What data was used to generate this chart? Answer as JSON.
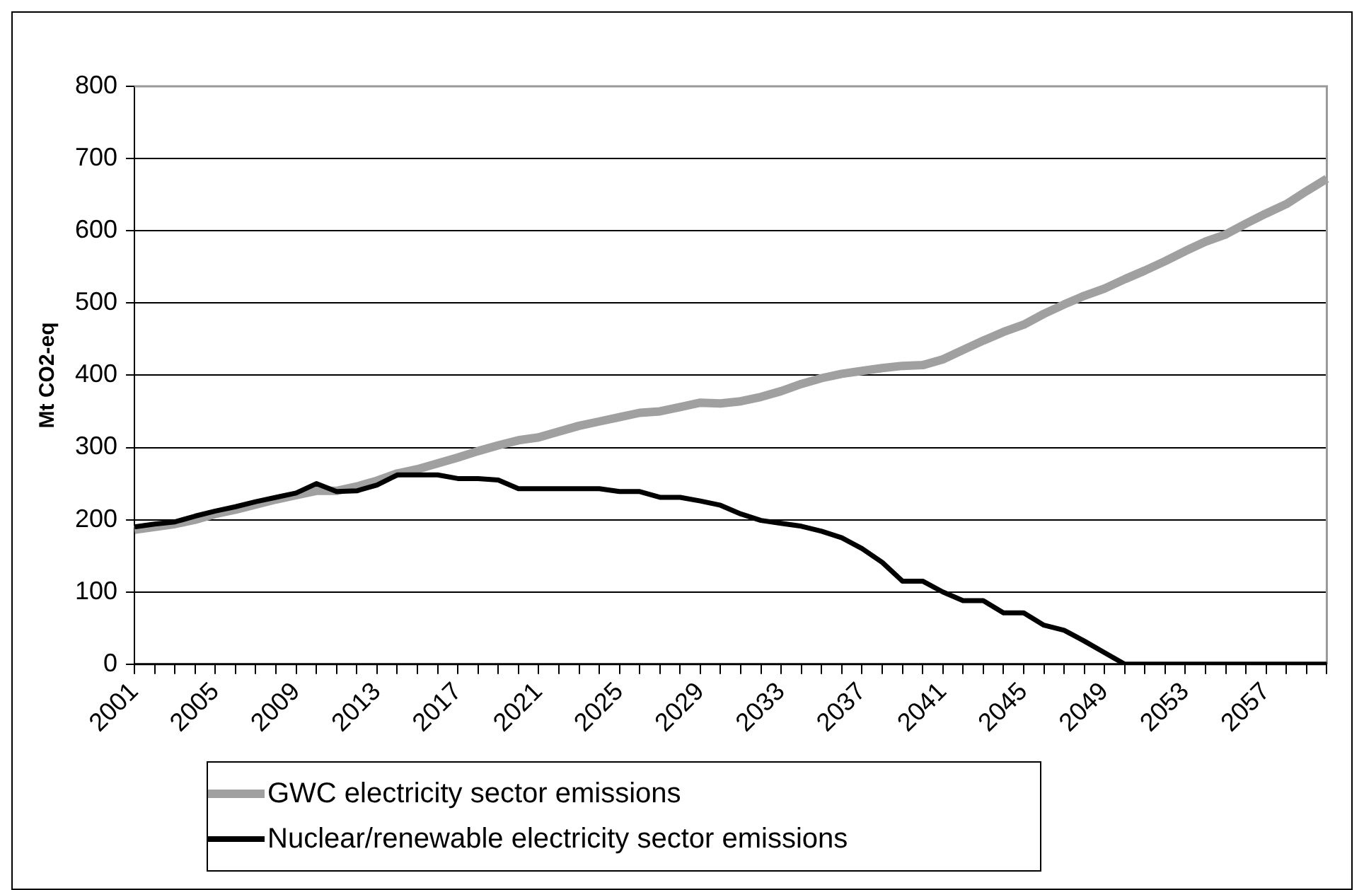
{
  "chart_data": {
    "type": "line",
    "ylabel": "Mt CO2-eq",
    "categories": [
      "2001",
      null,
      null,
      null,
      "2005",
      null,
      null,
      null,
      "2009",
      null,
      null,
      null,
      "2013",
      null,
      null,
      null,
      "2017",
      null,
      null,
      null,
      "2021",
      null,
      null,
      null,
      "2025",
      null,
      null,
      null,
      "2029",
      null,
      null,
      null,
      "2033",
      null,
      null,
      null,
      "2037",
      null,
      null,
      null,
      "2041",
      null,
      null,
      null,
      "2045",
      null,
      null,
      null,
      "2049",
      null,
      null,
      null,
      "2053",
      null,
      null,
      null,
      "2057",
      null,
      null,
      null
    ],
    "series": [
      {
        "name": "GWC electricity sector emissions",
        "color": "#a0a0a0",
        "values": [
          186,
          190,
          194,
          200,
          208,
          214,
          221,
          228,
          234,
          240,
          240,
          246,
          254,
          264,
          270,
          278,
          286,
          295,
          303,
          310,
          314,
          322,
          330,
          336,
          342,
          348,
          350,
          356,
          362,
          361,
          364,
          370,
          378,
          388,
          396,
          402,
          406,
          410,
          413,
          414,
          422,
          435,
          448,
          460,
          470,
          485,
          498,
          510,
          520,
          533,
          545,
          558,
          572,
          585,
          595,
          610,
          624,
          637,
          655,
          672
        ]
      },
      {
        "name": "Nuclear/renewable electricity sector emissions",
        "color": "#000000",
        "values": [
          190,
          194,
          197,
          205,
          212,
          218,
          225,
          231,
          237,
          250,
          239,
          240,
          248,
          262,
          262,
          262,
          257,
          257,
          255,
          243,
          243,
          243,
          243,
          243,
          239,
          239,
          231,
          231,
          226,
          220,
          208,
          199,
          195,
          191,
          184,
          175,
          160,
          141,
          115,
          115,
          100,
          88,
          88,
          71,
          71,
          54,
          47,
          32,
          16,
          0,
          0,
          0,
          0,
          0,
          0,
          0,
          0,
          0,
          0,
          0
        ]
      }
    ],
    "ylim": [
      0,
      800
    ],
    "yticks": [
      0,
      100,
      200,
      300,
      400,
      500,
      600,
      700,
      800
    ],
    "grid": "y",
    "legend": "bottom",
    "marker": "none",
    "line_style": "solid"
  }
}
